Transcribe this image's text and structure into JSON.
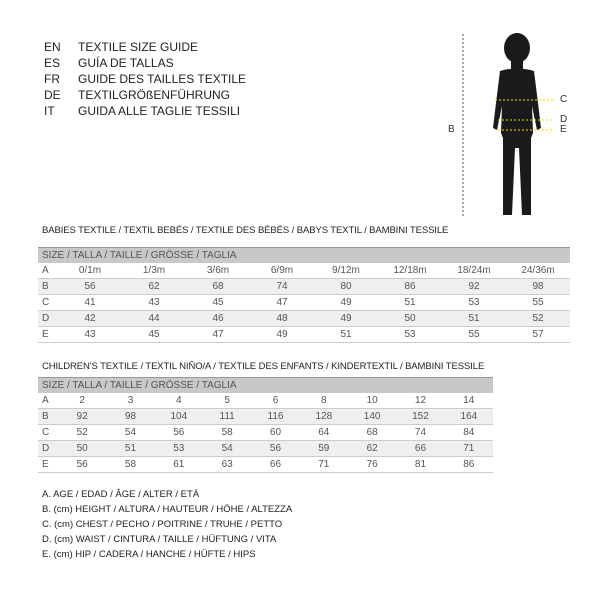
{
  "guide": [
    {
      "code": "EN",
      "text": "TEXTILE SIZE GUIDE"
    },
    {
      "code": "ES",
      "text": "GUÍA DE TALLAS"
    },
    {
      "code": "FR",
      "text": "GUIDE DES TAILLES TEXTILE"
    },
    {
      "code": "DE",
      "text": "TEXTILGRÖßENFÜHRUNG"
    },
    {
      "code": "IT",
      "text": "GUIDA ALLE TAGLIE TESSILI"
    }
  ],
  "figure": {
    "labels": {
      "b": "B",
      "c": "C",
      "d": "D",
      "e": "E"
    },
    "marker_color": "#e8e000"
  },
  "babies": {
    "title": "BABIES TEXTILE / TEXTIL BEBÉS / TEXTILE DES BÉBÉS / BABYS TEXTIL  / BAMBINI TESSILE",
    "header": "SIZE / TALLA / TAILLE / GRÖSSE / TAGLIA",
    "rows": [
      [
        "A",
        "0/1m",
        "1/3m",
        "3/6m",
        "6/9m",
        "9/12m",
        "12/18m",
        "18/24m",
        "24/36m"
      ],
      [
        "B",
        "56",
        "62",
        "68",
        "74",
        "80",
        "86",
        "92",
        "98"
      ],
      [
        "C",
        "41",
        "43",
        "45",
        "47",
        "49",
        "51",
        "53",
        "55"
      ],
      [
        "D",
        "42",
        "44",
        "46",
        "48",
        "49",
        "50",
        "51",
        "52"
      ],
      [
        "E",
        "43",
        "45",
        "47",
        "49",
        "51",
        "53",
        "55",
        "57"
      ]
    ]
  },
  "children": {
    "title": "CHILDREN'S TEXTILE / TEXTIL NIÑO/A / TEXTILE DES ENFANTS / KINDERTEXTIL / BAMBINI TESSILE",
    "header": "SIZE / TALLA / TAILLE / GRÖSSE / TAGLIA",
    "rows": [
      [
        "A",
        "2",
        "3",
        "4",
        "5",
        "6",
        "8",
        "10",
        "12",
        "14"
      ],
      [
        "B",
        "92",
        "98",
        "104",
        "111",
        "116",
        "128",
        "140",
        "152",
        "164"
      ],
      [
        "C",
        "52",
        "54",
        "56",
        "58",
        "60",
        "64",
        "68",
        "74",
        "84"
      ],
      [
        "D",
        "50",
        "51",
        "53",
        "54",
        "56",
        "59",
        "62",
        "66",
        "71"
      ],
      [
        "E",
        "56",
        "58",
        "61",
        "63",
        "66",
        "71",
        "76",
        "81",
        "86"
      ]
    ]
  },
  "legend": [
    "A. AGE / EDAD / ÂGE / ALTER / ETÀ",
    "B. (cm) HEIGHT / ALTURA / HAUTEUR / HÖHE / ALTEZZA",
    "C. (cm) CHEST / PECHO / POITRINE / TRUHE / PETTO",
    "D. (cm) WAIST / CINTURA / TAILLE / HÜFTUNG / VITA",
    "E. (cm) HIP / CADERA / HANCHE / HÜFTE / HIPS"
  ]
}
